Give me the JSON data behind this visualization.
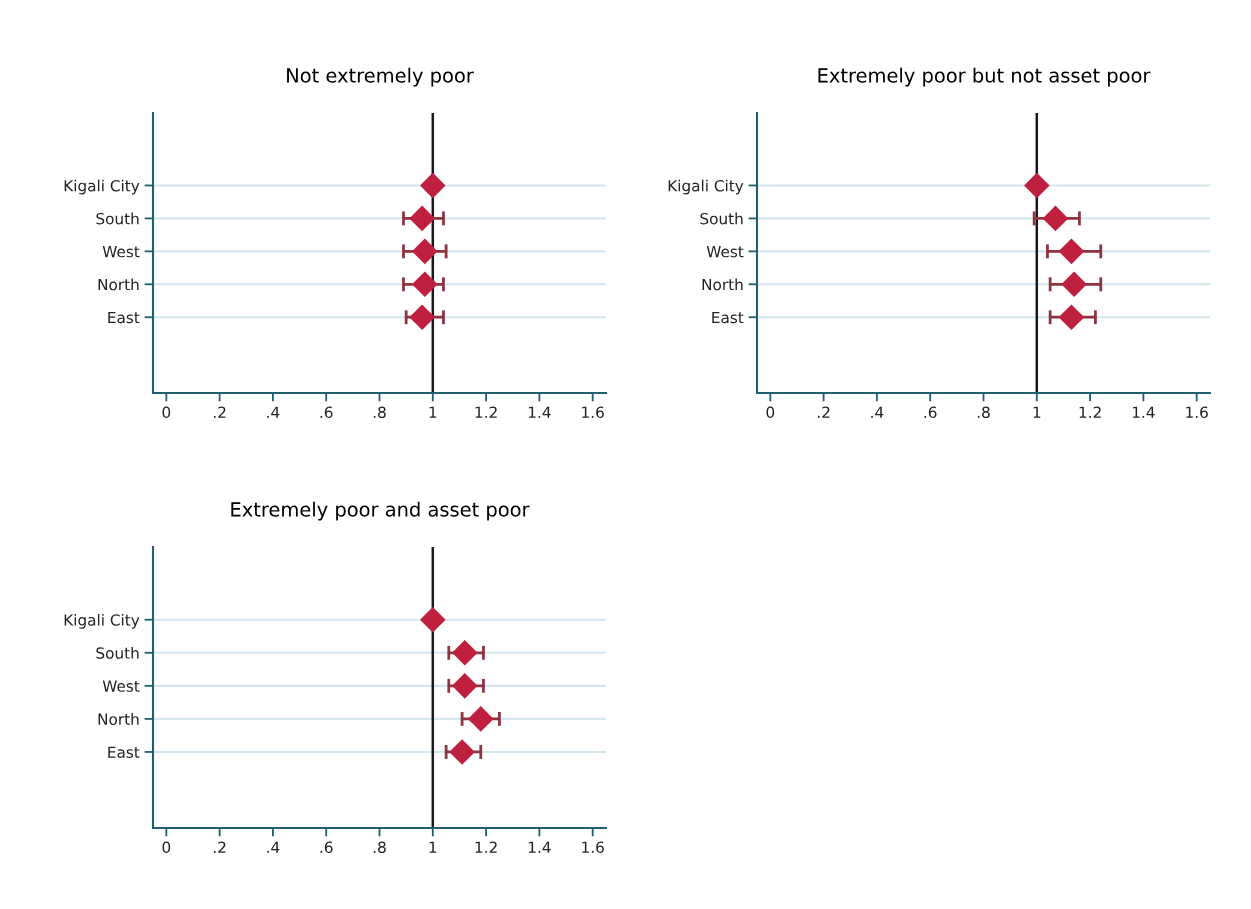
{
  "chart_data": [
    {
      "type": "scatter",
      "title": "Not extremely poor",
      "categories": [
        "Kigali City",
        "South",
        "West",
        "North",
        "East"
      ],
      "orientation": "horizontal",
      "marker": "diamond",
      "grid": "y",
      "xlim": [
        -0.05,
        1.65
      ],
      "xticks": [
        0,
        {
          "value": 0.2,
          "label": ".2"
        },
        {
          "value": 0.4,
          "label": ".4"
        },
        {
          "value": 0.6,
          "label": ".6"
        },
        {
          "value": 0.8,
          "label": ".8"
        },
        1,
        1.2,
        1.4,
        1.6
      ],
      "ref_lines": [
        {
          "axis": "x",
          "value": 1,
          "color": "#1a1a1a"
        }
      ],
      "series": [
        {
          "color": "#c0203f",
          "values": [
            1,
            0.96,
            0.97,
            0.97,
            0.96
          ],
          "errors": [
            null,
            [
              0.89,
              1.04
            ],
            [
              0.89,
              1.05
            ],
            [
              0.89,
              1.04
            ],
            [
              0.9,
              1.04
            ]
          ]
        }
      ]
    },
    {
      "type": "scatter",
      "title": "Extremely poor but not asset poor",
      "categories": [
        "Kigali City",
        "South",
        "West",
        "North",
        "East"
      ],
      "orientation": "horizontal",
      "marker": "diamond",
      "grid": "y",
      "xlim": [
        -0.05,
        1.65
      ],
      "xticks": [
        0,
        {
          "value": 0.2,
          "label": ".2"
        },
        {
          "value": 0.4,
          "label": ".4"
        },
        {
          "value": 0.6,
          "label": ".6"
        },
        {
          "value": 0.8,
          "label": ".8"
        },
        1,
        1.2,
        1.4,
        1.6
      ],
      "ref_lines": [
        {
          "axis": "x",
          "value": 1,
          "color": "#1a1a1a"
        }
      ],
      "series": [
        {
          "color": "#c0203f",
          "values": [
            1,
            1.07,
            1.13,
            1.14,
            1.13
          ],
          "errors": [
            null,
            [
              0.99,
              1.16
            ],
            [
              1.04,
              1.24
            ],
            [
              1.05,
              1.24
            ],
            [
              1.05,
              1.22
            ]
          ]
        }
      ]
    },
    {
      "type": "scatter",
      "title": "Extremely poor and asset poor",
      "categories": [
        "Kigali City",
        "South",
        "West",
        "North",
        "East"
      ],
      "orientation": "horizontal",
      "marker": "diamond",
      "grid": "y",
      "xlim": [
        -0.05,
        1.65
      ],
      "xticks": [
        0,
        {
          "value": 0.2,
          "label": ".2"
        },
        {
          "value": 0.4,
          "label": ".4"
        },
        {
          "value": 0.6,
          "label": ".6"
        },
        {
          "value": 0.8,
          "label": ".8"
        },
        1,
        1.2,
        1.4,
        1.6
      ],
      "ref_lines": [
        {
          "axis": "x",
          "value": 1,
          "color": "#1a1a1a"
        }
      ],
      "series": [
        {
          "color": "#c0203f",
          "values": [
            1,
            1.12,
            1.12,
            1.18,
            1.11
          ],
          "errors": [
            null,
            [
              1.06,
              1.19
            ],
            [
              1.06,
              1.19
            ],
            [
              1.11,
              1.25
            ],
            [
              1.05,
              1.18
            ]
          ]
        }
      ]
    }
  ]
}
